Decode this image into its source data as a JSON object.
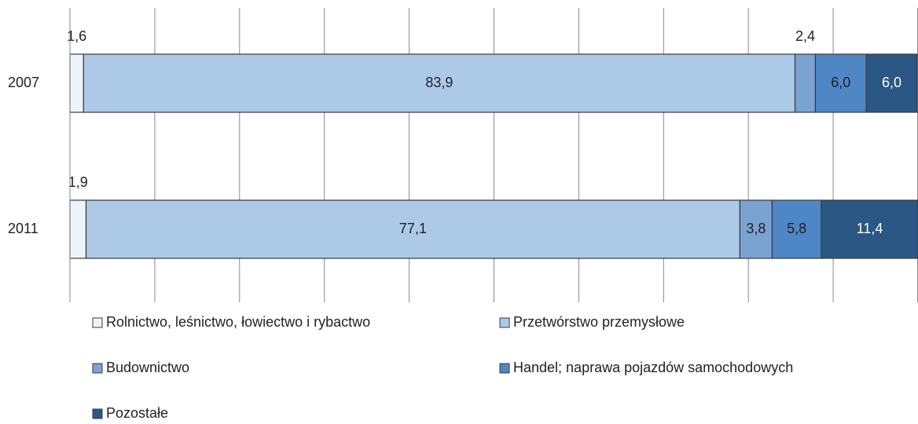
{
  "chart_data": {
    "type": "bar",
    "orientation": "horizontal",
    "stacked": true,
    "categories": [
      "2007",
      "2011"
    ],
    "series": [
      {
        "name": "Rolnictwo, leśnictwo, łowiectwo i rybactwo",
        "color": "#eef3fa",
        "values": [
          1.6,
          1.9
        ],
        "value_labels": [
          "1,6",
          "1,9"
        ]
      },
      {
        "name": "Przetwórstwo przemysłowe",
        "color": "#adc9e8",
        "values": [
          83.9,
          77.1
        ],
        "value_labels": [
          "83,9",
          "77,1"
        ]
      },
      {
        "name": "Budownictwo",
        "color": "#7ba3d2",
        "values": [
          2.4,
          3.8
        ],
        "value_labels": [
          "2,4",
          "3,8"
        ]
      },
      {
        "name": "Handel; naprawa pojazdów samochodowych",
        "color": "#4f86c6",
        "values": [
          6.0,
          5.8
        ],
        "value_labels": [
          "6,0",
          "5,8"
        ]
      },
      {
        "name": "Pozostałe",
        "color": "#2a5783",
        "values": [
          6.0,
          11.4
        ],
        "value_labels": [
          "6,0",
          "11,4"
        ]
      }
    ],
    "xlim": [
      0,
      100
    ],
    "xticks": [
      0,
      10,
      20,
      30,
      40,
      50,
      60,
      70,
      80,
      90,
      100
    ],
    "grid": true,
    "legend": "bottom"
  }
}
